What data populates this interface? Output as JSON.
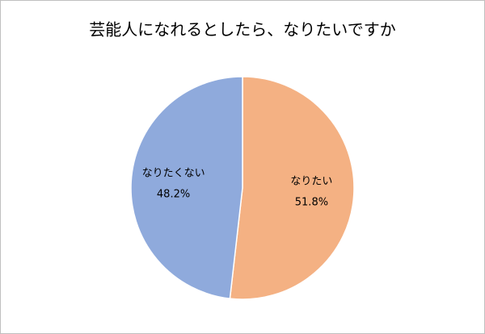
{
  "chart_data": {
    "type": "pie",
    "title": "芸能人になれるとしたら、なりたいですか",
    "categories": [
      "なりたい",
      "なりたくない"
    ],
    "values": [
      51.8,
      48.2
    ],
    "value_labels": [
      "51.8%",
      "48.2%"
    ],
    "colors": [
      "#f4b183",
      "#8faadc"
    ]
  }
}
